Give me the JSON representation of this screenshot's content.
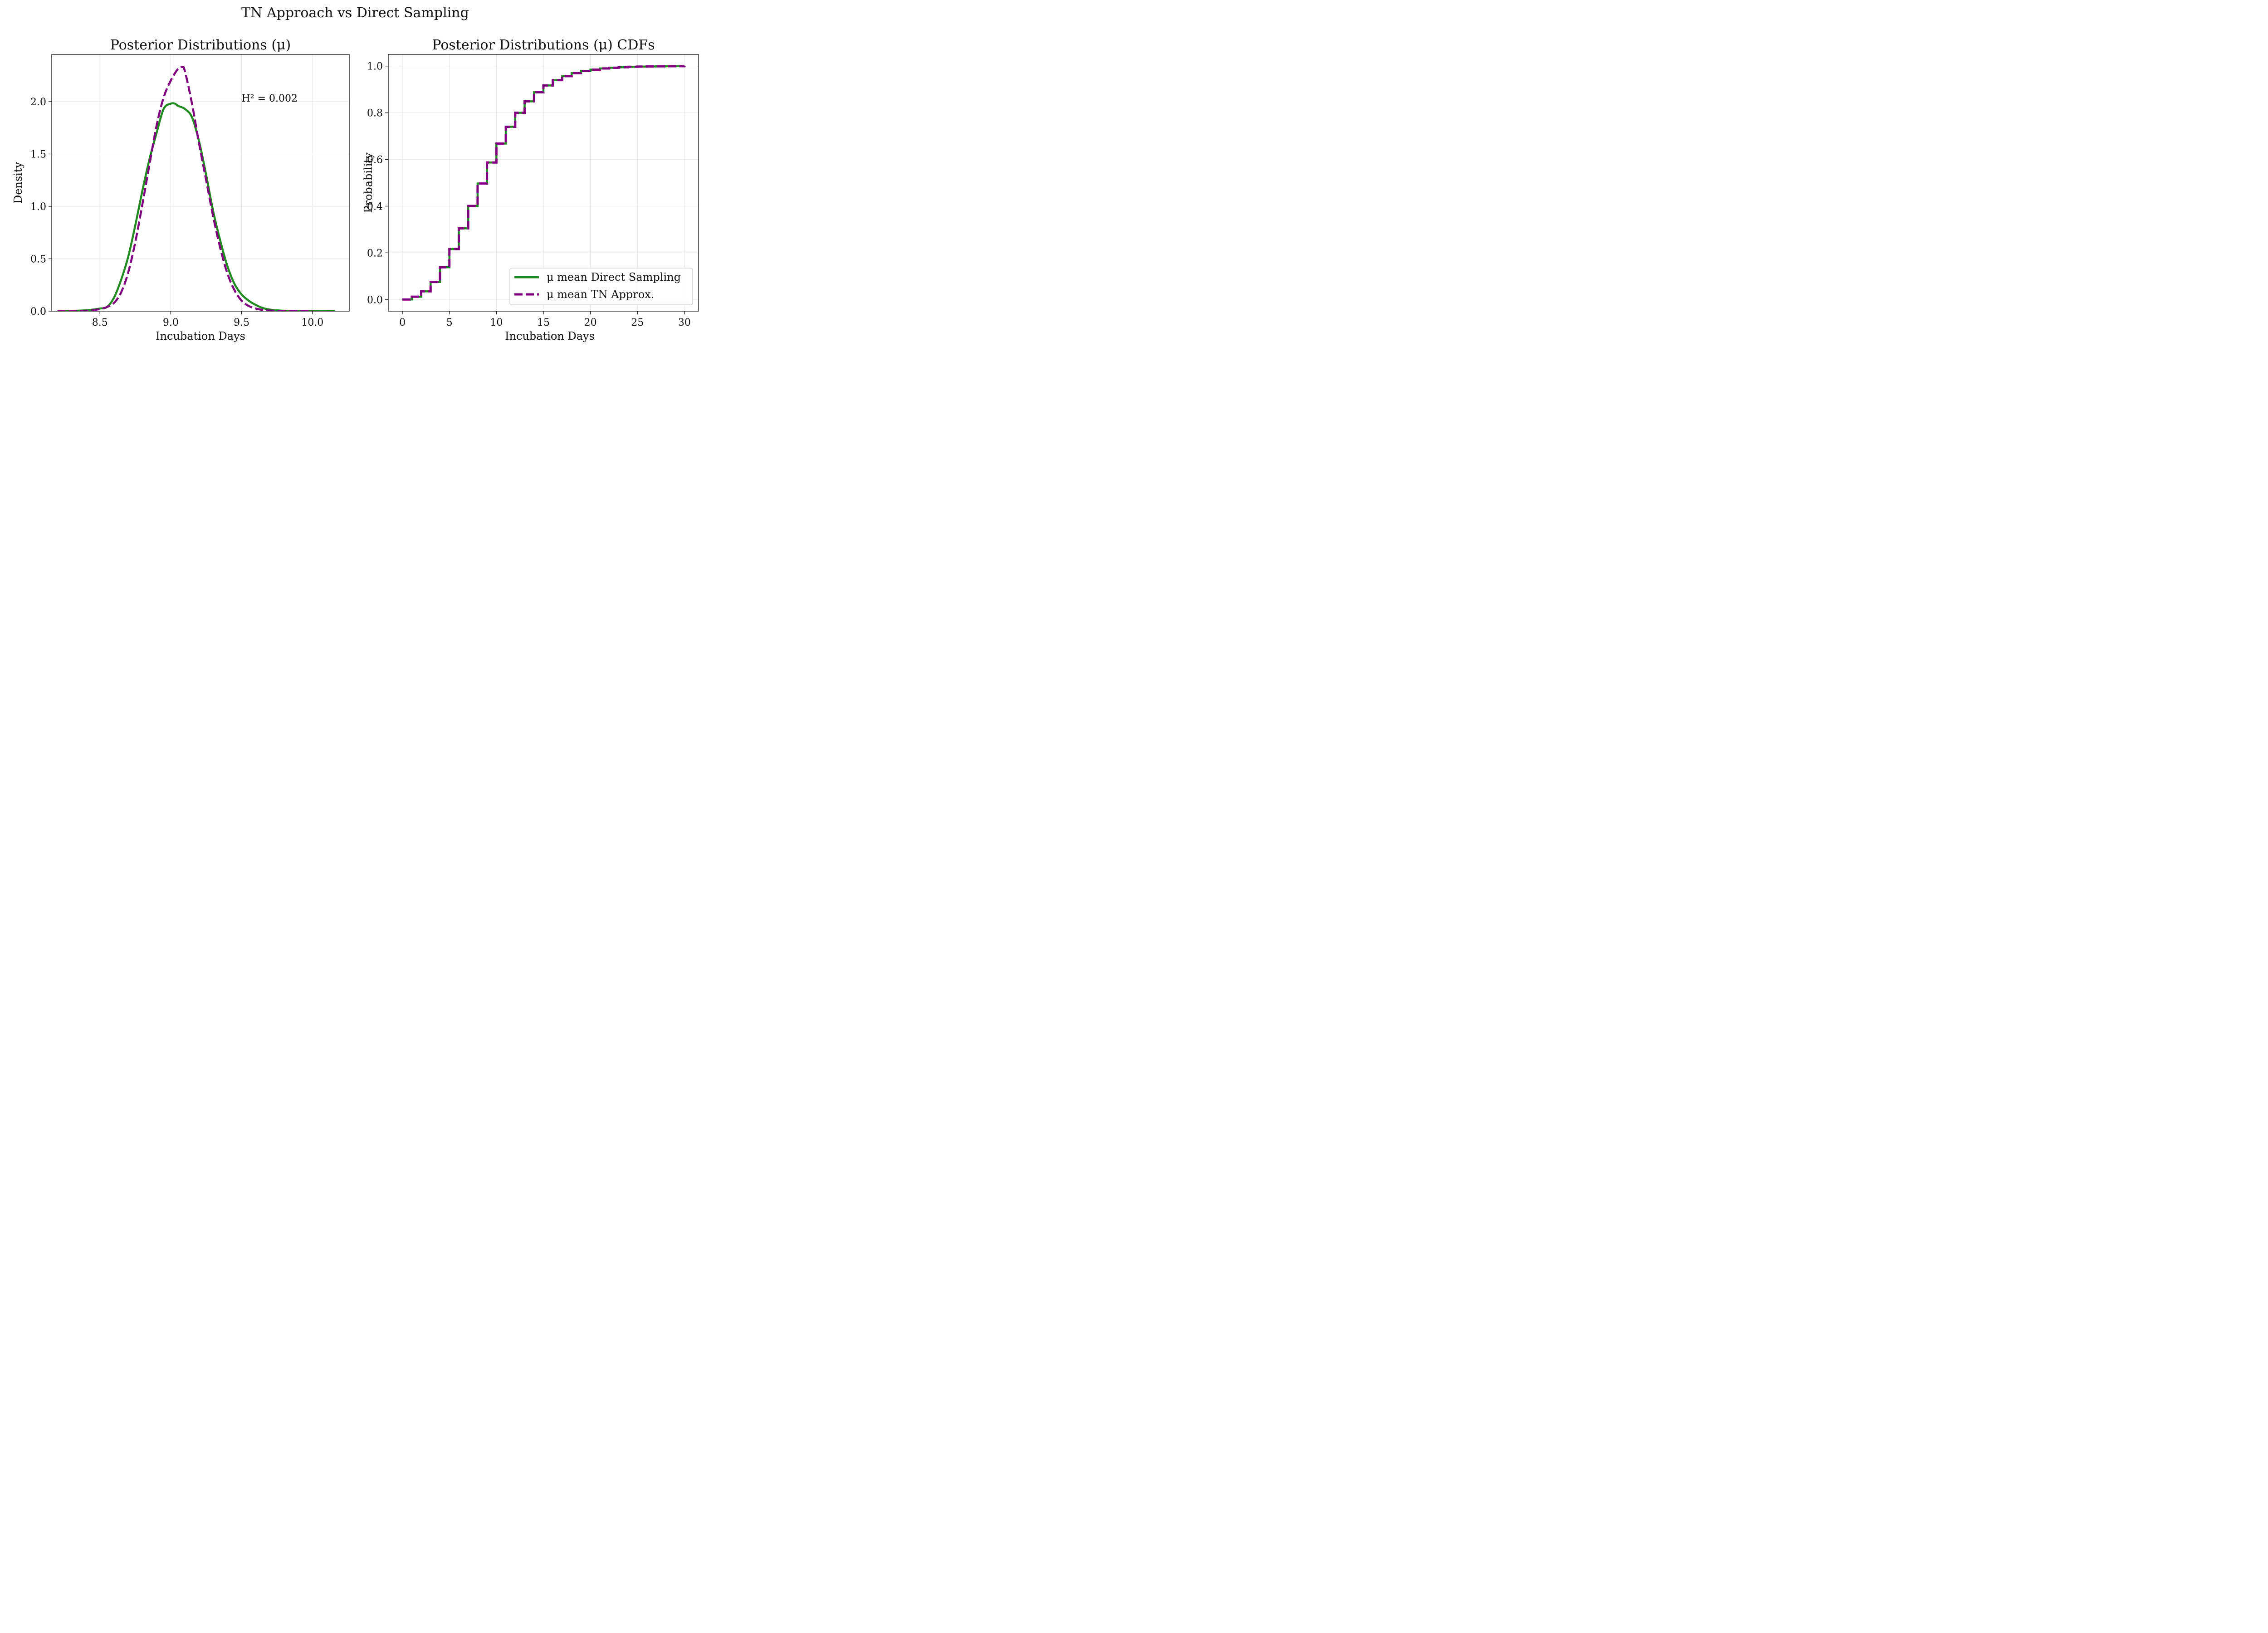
{
  "figure": {
    "suptitle": "TN Approach vs Direct Sampling"
  },
  "colors": {
    "direct": "#228b22",
    "tn": "#800080"
  },
  "chart_data": [
    {
      "type": "line",
      "title": "Posterior Distributions (μ)",
      "xlabel": "Incubation Days",
      "ylabel": "Density",
      "xlim": [
        8.16,
        10.26
      ],
      "ylim": [
        0.0,
        2.45
      ],
      "xticks": [
        8.5,
        9.0,
        9.5,
        10.0
      ],
      "xtick_labels": [
        "8.5",
        "9.0",
        "9.5",
        "10.0"
      ],
      "yticks": [
        0.0,
        0.5,
        1.0,
        1.5,
        2.0
      ],
      "ytick_labels": [
        "0.0",
        "0.5",
        "1.0",
        "1.5",
        "2.0"
      ],
      "grid": true,
      "annotation": {
        "text": "H² = 0.002",
        "x": 9.5,
        "y": 2.0
      },
      "series": [
        {
          "key": "direct",
          "style": "solid",
          "x": [
            8.2,
            8.3,
            8.4,
            8.45,
            8.5,
            8.55,
            8.6,
            8.65,
            8.7,
            8.75,
            8.8,
            8.85,
            8.9,
            8.95,
            9.0,
            9.03,
            9.05,
            9.1,
            9.15,
            9.2,
            9.25,
            9.3,
            9.35,
            9.4,
            9.45,
            9.5,
            9.55,
            9.6,
            9.65,
            9.7,
            9.75,
            9.8,
            9.9,
            10.0,
            10.16
          ],
          "y": [
            0.0,
            0.002,
            0.008,
            0.015,
            0.025,
            0.04,
            0.13,
            0.3,
            0.52,
            0.82,
            1.15,
            1.45,
            1.7,
            1.93,
            1.98,
            1.98,
            1.96,
            1.93,
            1.85,
            1.62,
            1.3,
            0.95,
            0.67,
            0.43,
            0.26,
            0.16,
            0.1,
            0.06,
            0.03,
            0.015,
            0.008,
            0.004,
            0.002,
            0.001,
            0.0
          ]
        },
        {
          "key": "tn",
          "style": "dashed",
          "x": [
            8.2,
            8.3,
            8.4,
            8.45,
            8.5,
            8.55,
            8.6,
            8.65,
            8.7,
            8.75,
            8.8,
            8.85,
            8.9,
            8.95,
            9.0,
            9.05,
            9.08,
            9.1,
            9.15,
            9.2,
            9.25,
            9.3,
            9.35,
            9.4,
            9.45,
            9.5,
            9.55,
            9.6,
            9.65,
            9.7,
            9.75,
            9.8,
            9.9,
            10.0
          ],
          "y": [
            0.0,
            0.001,
            0.004,
            0.01,
            0.02,
            0.04,
            0.08,
            0.18,
            0.37,
            0.66,
            1.02,
            1.4,
            1.77,
            2.04,
            2.2,
            2.31,
            2.33,
            2.29,
            1.98,
            1.6,
            1.25,
            0.9,
            0.6,
            0.36,
            0.2,
            0.1,
            0.05,
            0.025,
            0.012,
            0.006,
            0.003,
            0.001,
            0.0,
            0.0
          ]
        }
      ]
    },
    {
      "type": "line",
      "title": "Posterior Distributions (μ) CDFs",
      "xlabel": "Incubation Days",
      "ylabel": "Probability",
      "xlim": [
        -1.5,
        31.5
      ],
      "ylim": [
        -0.05,
        1.05
      ],
      "xticks": [
        0,
        5,
        10,
        15,
        20,
        25,
        30
      ],
      "xtick_labels": [
        "0",
        "5",
        "10",
        "15",
        "20",
        "25",
        "30"
      ],
      "yticks": [
        0.0,
        0.2,
        0.4,
        0.6,
        0.8,
        1.0
      ],
      "ytick_labels": [
        "0.0",
        "0.2",
        "0.4",
        "0.6",
        "0.8",
        "1.0"
      ],
      "grid": true,
      "legend": {
        "placement": "lower right"
      },
      "step_x": [
        0,
        1,
        2,
        3,
        4,
        5,
        6,
        7,
        8,
        9,
        10,
        11,
        12,
        13,
        14,
        15,
        16,
        17,
        18,
        19,
        20,
        21,
        22,
        23,
        24,
        25,
        26,
        27,
        28,
        29,
        30
      ],
      "series": [
        {
          "key": "direct",
          "name": "μ mean Direct Sampling",
          "style": "solid",
          "values": [
            0.0,
            0.012,
            0.035,
            0.075,
            0.138,
            0.216,
            0.305,
            0.401,
            0.497,
            0.587,
            0.668,
            0.74,
            0.8,
            0.849,
            0.888,
            0.917,
            0.94,
            0.957,
            0.97,
            0.979,
            0.985,
            0.99,
            0.993,
            0.995,
            0.997,
            0.998,
            0.9985,
            0.999,
            0.9995,
            0.9997,
            1.0
          ]
        },
        {
          "key": "tn",
          "name": "μ mean TN Approx.",
          "style": "dashed",
          "values": [
            0.0,
            0.012,
            0.035,
            0.075,
            0.138,
            0.216,
            0.305,
            0.401,
            0.497,
            0.587,
            0.668,
            0.74,
            0.8,
            0.849,
            0.888,
            0.917,
            0.94,
            0.957,
            0.97,
            0.979,
            0.985,
            0.99,
            0.993,
            0.995,
            0.997,
            0.998,
            0.9985,
            0.999,
            0.9995,
            0.9997,
            1.0
          ]
        }
      ]
    }
  ]
}
